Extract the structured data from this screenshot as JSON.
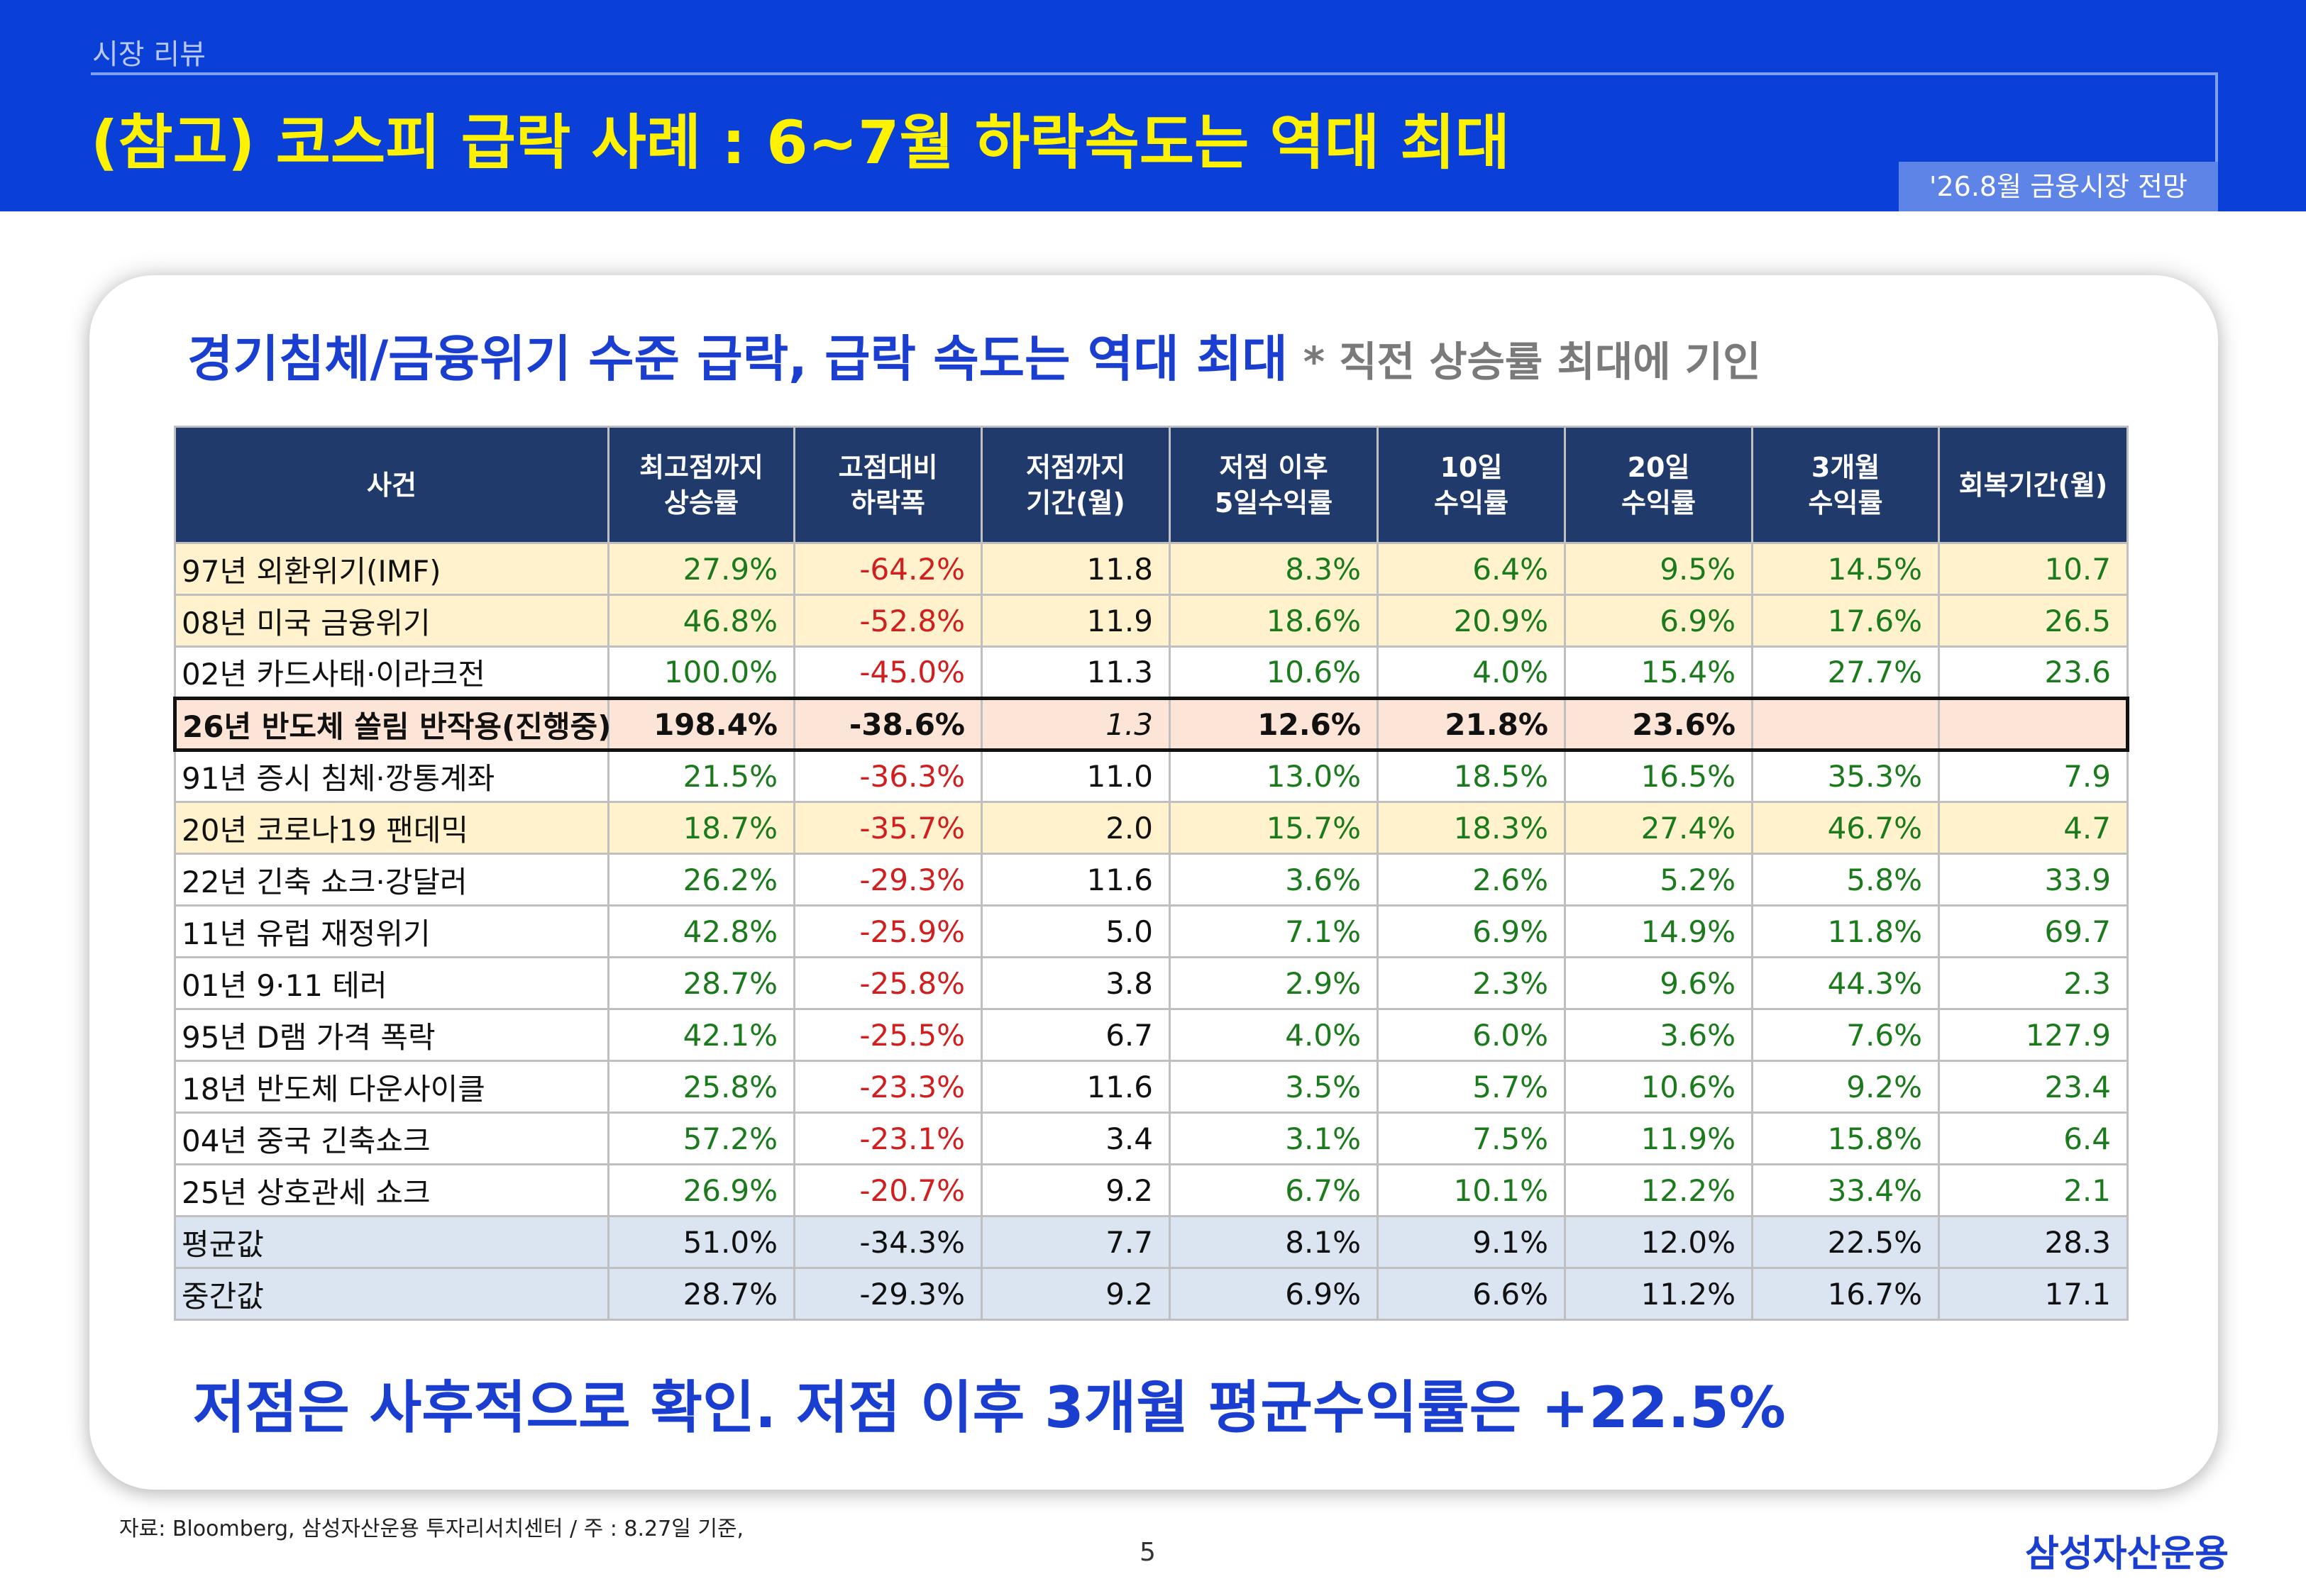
{
  "header": {
    "section": "시장 리뷰",
    "title": "(참고) 코스피 급락 사례 : 6~7월 하락속도는 역대 최대",
    "badge": "'26.8월 금융시장 전망"
  },
  "headline": {
    "main": "경기침체/금융위기 수준 급락, 급락 속도는 역대 최대",
    "note": "* 직전 상승률 최대에 기인"
  },
  "table": {
    "headers": [
      "사건",
      "최고점까지\n상승률",
      "고점대비\n하락폭",
      "저점까지\n기간(월)",
      "저점 이후\n5일수익률",
      "10일\n수익률",
      "20일\n수익률",
      "3개월\n수익률",
      "회복기간(월)"
    ],
    "rows": [
      {
        "event": "97년 외환위기(IMF)",
        "rise": "27.9%",
        "drop": "-64.2%",
        "months": "11.8",
        "r5": "8.3%",
        "r10": "6.4%",
        "r20": "9.5%",
        "r3m": "14.5%",
        "recovery": "10.7"
      },
      {
        "event": "08년 미국 금융위기",
        "rise": "46.8%",
        "drop": "-52.8%",
        "months": "11.9",
        "r5": "18.6%",
        "r10": "20.9%",
        "r20": "6.9%",
        "r3m": "17.6%",
        "recovery": "26.5"
      },
      {
        "event": "02년 카드사태·이라크전",
        "rise": "100.0%",
        "drop": "-45.0%",
        "months": "11.3",
        "r5": "10.6%",
        "r10": "4.0%",
        "r20": "15.4%",
        "r3m": "27.7%",
        "recovery": "23.6"
      },
      {
        "event": "26년 반도체 쏠림 반작용(진행중)",
        "rise": "198.4%",
        "drop": "-38.6%",
        "months": "1.3",
        "r5": "12.6%",
        "r10": "21.8%",
        "r20": "23.6%",
        "r3m": "",
        "recovery": ""
      },
      {
        "event": "91년 증시 침체·깡통계좌",
        "rise": "21.5%",
        "drop": "-36.3%",
        "months": "11.0",
        "r5": "13.0%",
        "r10": "18.5%",
        "r20": "16.5%",
        "r3m": "35.3%",
        "recovery": "7.9"
      },
      {
        "event": "20년 코로나19 팬데믹",
        "rise": "18.7%",
        "drop": "-35.7%",
        "months": "2.0",
        "r5": "15.7%",
        "r10": "18.3%",
        "r20": "27.4%",
        "r3m": "46.7%",
        "recovery": "4.7"
      },
      {
        "event": "22년 긴축 쇼크·강달러",
        "rise": "26.2%",
        "drop": "-29.3%",
        "months": "11.6",
        "r5": "3.6%",
        "r10": "2.6%",
        "r20": "5.2%",
        "r3m": "5.8%",
        "recovery": "33.9"
      },
      {
        "event": "11년 유럽 재정위기",
        "rise": "42.8%",
        "drop": "-25.9%",
        "months": "5.0",
        "r5": "7.1%",
        "r10": "6.9%",
        "r20": "14.9%",
        "r3m": "11.8%",
        "recovery": "69.7"
      },
      {
        "event": "01년 9·11 테러",
        "rise": "28.7%",
        "drop": "-25.8%",
        "months": "3.8",
        "r5": "2.9%",
        "r10": "2.3%",
        "r20": "9.6%",
        "r3m": "44.3%",
        "recovery": "2.3"
      },
      {
        "event": "95년 D램 가격 폭락",
        "rise": "42.1%",
        "drop": "-25.5%",
        "months": "6.7",
        "r5": "4.0%",
        "r10": "6.0%",
        "r20": "3.6%",
        "r3m": "7.6%",
        "recovery": "127.9"
      },
      {
        "event": "18년 반도체 다운사이클",
        "rise": "25.8%",
        "drop": "-23.3%",
        "months": "11.6",
        "r5": "3.5%",
        "r10": "5.7%",
        "r20": "10.6%",
        "r3m": "9.2%",
        "recovery": "23.4"
      },
      {
        "event": "04년 중국 긴축쇼크",
        "rise": "57.2%",
        "drop": "-23.1%",
        "months": "3.4",
        "r5": "3.1%",
        "r10": "7.5%",
        "r20": "11.9%",
        "r3m": "15.8%",
        "recovery": "6.4"
      },
      {
        "event": "25년 상호관세 쇼크",
        "rise": "26.9%",
        "drop": "-20.7%",
        "months": "9.2",
        "r5": "6.7%",
        "r10": "10.1%",
        "r20": "12.2%",
        "r3m": "33.4%",
        "recovery": "2.1"
      }
    ],
    "stats": [
      {
        "event": "평균값",
        "rise": "51.0%",
        "drop": "-34.3%",
        "months": "7.7",
        "r5": "8.1%",
        "r10": "9.1%",
        "r20": "12.0%",
        "r3m": "22.5%",
        "recovery": "28.3"
      },
      {
        "event": "중간값",
        "rise": "28.7%",
        "drop": "-29.3%",
        "months": "9.2",
        "r5": "6.9%",
        "r10": "6.6%",
        "r20": "11.2%",
        "r3m": "16.7%",
        "recovery": "17.1"
      }
    ],
    "highlight_color": "#fff2cc",
    "current_row_color": "#fce4d6",
    "stat_row_color": "#dbe5f1",
    "header_color": "#1f3a6b",
    "positive_color": "#1b7a1b",
    "negative_color": "#d11f1f"
  },
  "conclusion": "저점은 사후적으로 확인. 저점 이후 3개월 평균수익률은 +22.5%",
  "footer": {
    "source": "자료: Bloomberg, 삼성자산운용 투자리서치센터 / 주 : 8.27일 기준,",
    "page": "5",
    "logo": "삼성자산운용"
  }
}
